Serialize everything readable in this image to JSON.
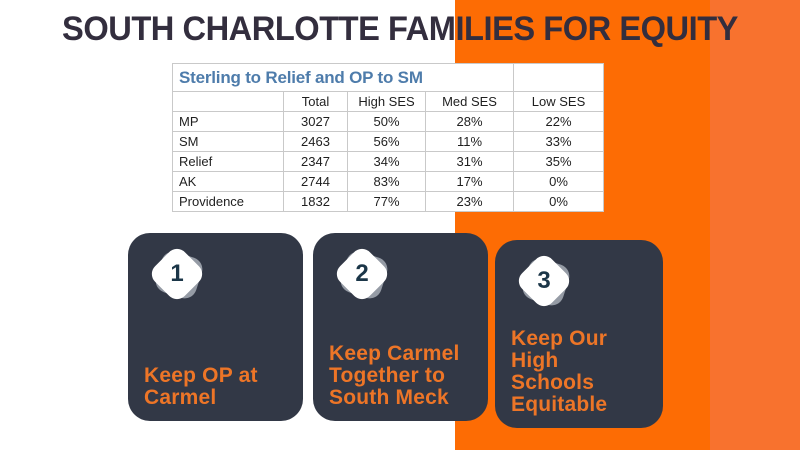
{
  "page": {
    "title": "SOUTH CHARLOTTE FAMILIES FOR EQUITY"
  },
  "colors": {
    "orange_main": "#fd6c04",
    "orange_light_band": "#f8722e",
    "headline_text": "#332e3e",
    "table_title_blue": "#4e7cab",
    "card_background": "#323846",
    "card_text_orange": "#ed7527",
    "badge_number": "#1b3648"
  },
  "table": {
    "title": "Sterling to Relief and OP to SM",
    "columns": [
      "",
      "Total",
      "High SES",
      "Med SES",
      "Low SES"
    ],
    "rows": [
      {
        "label": "MP",
        "total": "3027",
        "high": "50%",
        "med": "28%",
        "low": "22%"
      },
      {
        "label": "SM",
        "total": "2463",
        "high": "56%",
        "med": "11%",
        "low": "33%"
      },
      {
        "label": "Relief",
        "total": "2347",
        "high": "34%",
        "med": "31%",
        "low": "35%"
      },
      {
        "label": "AK",
        "total": "2744",
        "high": "83%",
        "med": "17%",
        "low": "0%"
      },
      {
        "label": "Providence",
        "total": "1832",
        "high": "77%",
        "med": "23%",
        "low": "0%"
      }
    ]
  },
  "cards": [
    {
      "number": "1",
      "title": "Keep OP at\nCarmel"
    },
    {
      "number": "2",
      "title": "Keep Carmel\nTogether to\nSouth Meck"
    },
    {
      "number": "3",
      "title": "Keep Our High\nSchools\nEquitable"
    }
  ]
}
